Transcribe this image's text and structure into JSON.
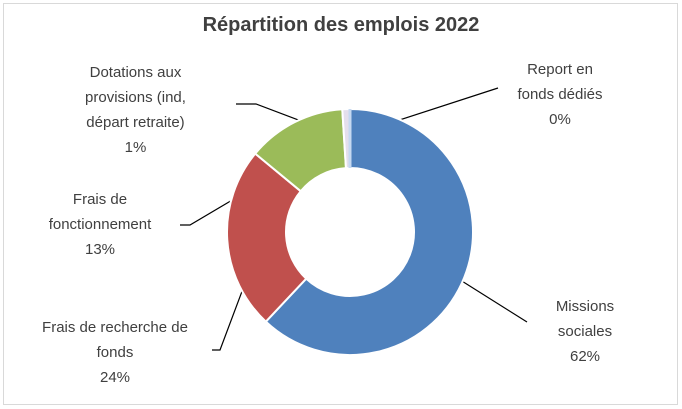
{
  "chart_data": {
    "type": "donut",
    "title": "Répartition des emplois 2022",
    "categories": [
      "Missions sociales",
      "Frais de recherche de fonds",
      "Frais de fonctionnement",
      "Dotations aux provisions (ind, départ retraite)",
      "Report en fonds dédiés"
    ],
    "values": [
      62,
      24,
      13,
      1,
      0
    ],
    "value_labels": [
      "62%",
      "24%",
      "13%",
      "1%",
      "0%"
    ],
    "colors": [
      "#4f81bd",
      "#c0504d",
      "#9bbb59",
      "#e4dfec",
      "#c6d9f1"
    ]
  }
}
